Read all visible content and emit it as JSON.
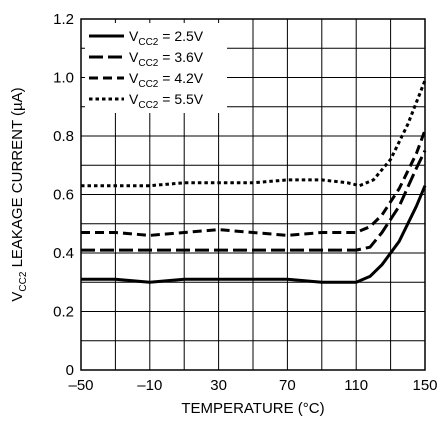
{
  "chart_data": {
    "type": "line",
    "title": "",
    "xlabel": "TEMPERATURE (°C)",
    "ylabel": {
      "prefix": "V",
      "sub": "CC2",
      "suffix": " LEAKAGE CURRENT (µA)"
    },
    "xlim": [
      -50,
      150
    ],
    "ylim": [
      0,
      1.2
    ],
    "xticks": [
      -50,
      -10,
      30,
      70,
      110,
      150
    ],
    "xtick_labels": [
      "–50",
      "–10",
      "30",
      "70",
      "110",
      "150"
    ],
    "yticks": [
      0,
      0.2,
      0.4,
      0.6,
      0.8,
      1.0,
      1.2
    ],
    "ytick_labels": [
      "0",
      "0.2",
      "0.4",
      "0.6",
      "0.8",
      "1.0",
      "1.2"
    ],
    "grid": true,
    "legend_position": "top-left",
    "series": [
      {
        "name": {
          "prefix": "V",
          "sub": "CC2",
          "suffix": " = 2.5V"
        },
        "dash": "solid",
        "points": [
          [
            -50,
            0.31
          ],
          [
            -30,
            0.31
          ],
          [
            -10,
            0.3
          ],
          [
            10,
            0.31
          ],
          [
            30,
            0.31
          ],
          [
            50,
            0.31
          ],
          [
            70,
            0.31
          ],
          [
            90,
            0.3
          ],
          [
            110,
            0.3
          ],
          [
            118,
            0.32
          ],
          [
            125,
            0.36
          ],
          [
            135,
            0.44
          ],
          [
            145,
            0.56
          ],
          [
            150,
            0.63
          ]
        ]
      },
      {
        "name": {
          "prefix": "V",
          "sub": "CC2",
          "suffix": " = 3.6V"
        },
        "dash": "long",
        "points": [
          [
            -50,
            0.41
          ],
          [
            -30,
            0.41
          ],
          [
            -10,
            0.41
          ],
          [
            10,
            0.41
          ],
          [
            30,
            0.41
          ],
          [
            50,
            0.41
          ],
          [
            70,
            0.41
          ],
          [
            90,
            0.41
          ],
          [
            110,
            0.41
          ],
          [
            118,
            0.42
          ],
          [
            125,
            0.47
          ],
          [
            135,
            0.56
          ],
          [
            145,
            0.69
          ],
          [
            150,
            0.75
          ]
        ]
      },
      {
        "name": {
          "prefix": "V",
          "sub": "CC2",
          "suffix": " = 4.2V"
        },
        "dash": "medium",
        "points": [
          [
            -50,
            0.47
          ],
          [
            -30,
            0.47
          ],
          [
            -10,
            0.46
          ],
          [
            10,
            0.47
          ],
          [
            30,
            0.48
          ],
          [
            50,
            0.47
          ],
          [
            70,
            0.46
          ],
          [
            90,
            0.47
          ],
          [
            110,
            0.47
          ],
          [
            118,
            0.49
          ],
          [
            125,
            0.53
          ],
          [
            135,
            0.62
          ],
          [
            145,
            0.74
          ],
          [
            150,
            0.82
          ]
        ]
      },
      {
        "name": {
          "prefix": "V",
          "sub": "CC2",
          "suffix": " = 5.5V"
        },
        "dash": "short",
        "points": [
          [
            -50,
            0.63
          ],
          [
            -30,
            0.63
          ],
          [
            -10,
            0.63
          ],
          [
            10,
            0.64
          ],
          [
            30,
            0.64
          ],
          [
            50,
            0.64
          ],
          [
            70,
            0.65
          ],
          [
            90,
            0.65
          ],
          [
            105,
            0.64
          ],
          [
            112,
            0.63
          ],
          [
            120,
            0.65
          ],
          [
            130,
            0.72
          ],
          [
            140,
            0.84
          ],
          [
            150,
            0.99
          ]
        ]
      }
    ]
  }
}
